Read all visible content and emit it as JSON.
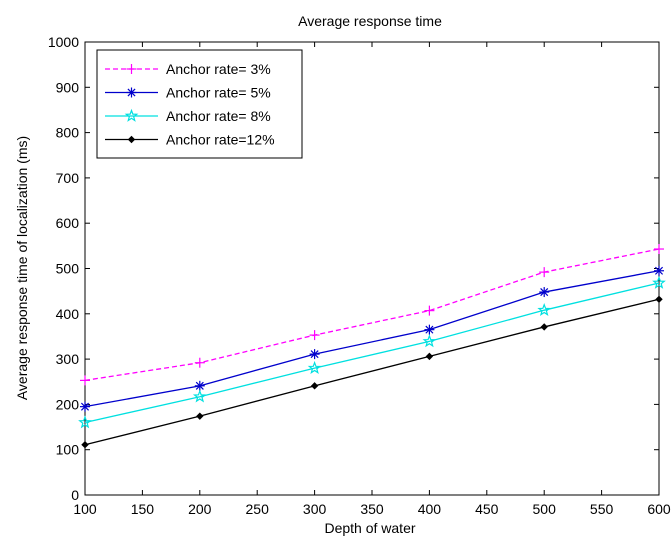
{
  "chart_data": {
    "type": "line",
    "title": "Average response time",
    "xlabel": "Depth of water",
    "ylabel": "Average response time of localization (ms)",
    "xlim": [
      100,
      600
    ],
    "ylim": [
      0,
      1000
    ],
    "x_ticks": [
      100,
      150,
      200,
      250,
      300,
      350,
      400,
      450,
      500,
      550,
      600
    ],
    "y_ticks": [
      0,
      100,
      200,
      300,
      400,
      500,
      600,
      700,
      800,
      900,
      1000
    ],
    "grid": false,
    "legend_position": "top-left",
    "x": [
      100,
      200,
      300,
      400,
      500,
      600
    ],
    "series": [
      {
        "name": "Anchor rate= 3%",
        "values": [
          253,
          292,
          353,
          407,
          492,
          543
        ],
        "color": "#ff00ff",
        "line_style": "dashed",
        "marker": "plus"
      },
      {
        "name": "Anchor rate= 5%",
        "values": [
          195,
          241,
          311,
          365,
          448,
          495
        ],
        "color": "#0000cc",
        "line_style": "solid",
        "marker": "asterisk"
      },
      {
        "name": "Anchor rate= 8%",
        "values": [
          160,
          217,
          280,
          339,
          408,
          468
        ],
        "color": "#00e0e0",
        "line_style": "solid",
        "marker": "star"
      },
      {
        "name": "Anchor rate=12%",
        "values": [
          111,
          174,
          241,
          306,
          371,
          432
        ],
        "color": "#000000",
        "line_style": "solid",
        "marker": "dot"
      }
    ]
  }
}
